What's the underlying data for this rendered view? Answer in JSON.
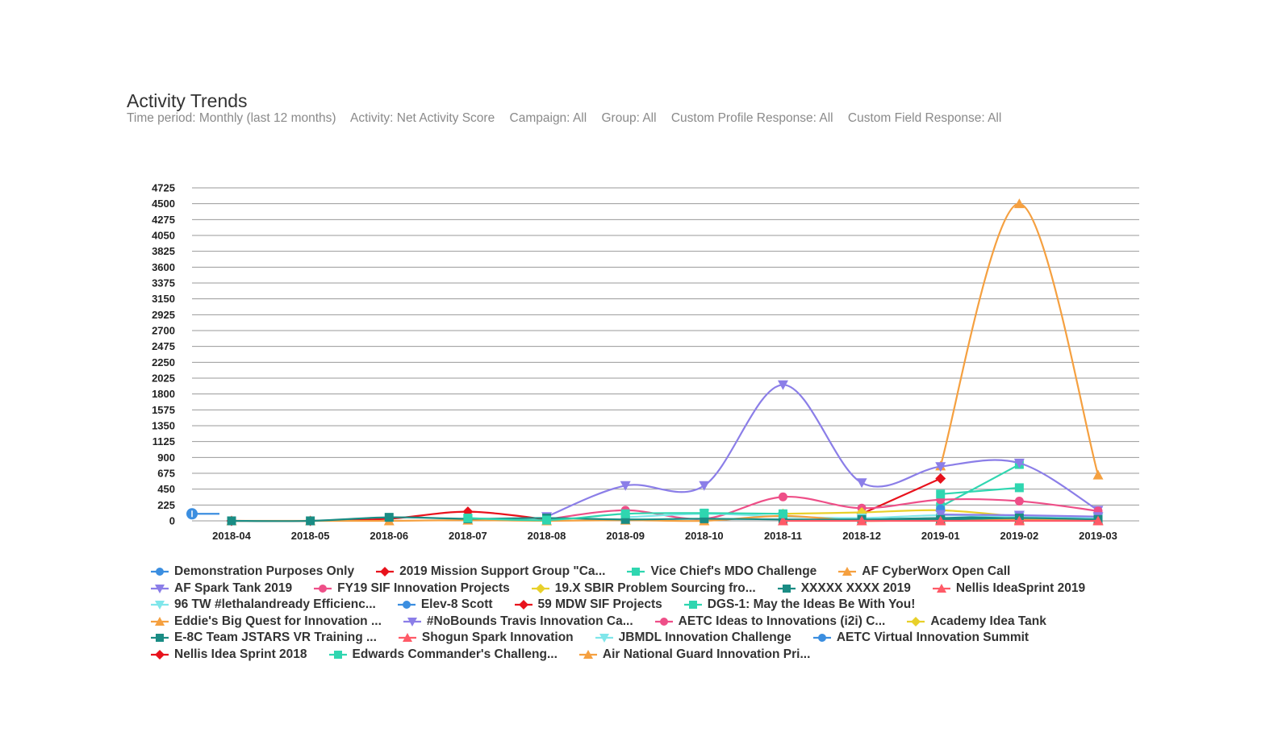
{
  "header": {
    "title": "Activity Trends",
    "filters": [
      "Time period: Monthly (last 12 months)",
      "Activity: Net Activity Score",
      "Campaign: All",
      "Group: All",
      "Custom Profile Response: All",
      "Custom Field Response: All"
    ]
  },
  "chart_data": {
    "type": "line",
    "title": "Activity Trends",
    "xlabel": "",
    "ylabel": "",
    "ylim": [
      0,
      4725
    ],
    "yticks": [
      0,
      225,
      450,
      675,
      900,
      1125,
      1350,
      1575,
      1800,
      2025,
      2250,
      2475,
      2700,
      2925,
      3150,
      3375,
      3600,
      3825,
      4050,
      4275,
      4500,
      4725
    ],
    "categories": [
      "2018-04",
      "2018-05",
      "2018-06",
      "2018-07",
      "2018-08",
      "2018-09",
      "2018-10",
      "2018-11",
      "2018-12",
      "2019-01",
      "2019-02",
      "2019-03"
    ],
    "grid": true,
    "legend_position": "bottom",
    "series": [
      {
        "name": "Demonstration Purposes Only",
        "color": "#3b8ee0",
        "marker": "circle",
        "values": [
          null,
          null,
          null,
          null,
          null,
          null,
          null,
          null,
          null,
          null,
          null,
          null
        ],
        "start_point": {
          "x": "before 2018-04",
          "y": 100
        }
      },
      {
        "name": "2019 Mission Support Group \"Ca...",
        "color": "#e8121c",
        "marker": "diamond",
        "values": [
          null,
          null,
          null,
          null,
          null,
          null,
          null,
          null,
          100,
          600,
          null,
          null
        ]
      },
      {
        "name": "Vice Chief's MDO Challenge",
        "color": "#2fd6b0",
        "marker": "square",
        "values": [
          null,
          null,
          null,
          null,
          null,
          null,
          null,
          null,
          null,
          200,
          800,
          null
        ]
      },
      {
        "name": "AF CyberWorx Open Call",
        "color": "#f5a040",
        "marker": "triangle",
        "values": [
          null,
          null,
          null,
          null,
          null,
          null,
          null,
          null,
          null,
          780,
          4500,
          650
        ]
      },
      {
        "name": "AF Spark Tank 2019",
        "color": "#8b7ee8",
        "marker": "triangle-down",
        "values": [
          null,
          null,
          null,
          null,
          60,
          500,
          500,
          1930,
          540,
          770,
          820,
          150
        ]
      },
      {
        "name": "FY19 SIF Innovation Projects",
        "color": "#ee4f88",
        "marker": "circle",
        "values": [
          null,
          null,
          null,
          null,
          20,
          150,
          30,
          340,
          180,
          300,
          280,
          140
        ]
      },
      {
        "name": "19.X SBIR Problem Sourcing fro...",
        "color": "#e8d02a",
        "marker": "diamond",
        "values": [
          null,
          null,
          null,
          null,
          null,
          null,
          null,
          100,
          120,
          150,
          60,
          null
        ]
      },
      {
        "name": "XXXXX XXXX 2019",
        "color": "#1a8c84",
        "marker": "square",
        "values": [
          null,
          null,
          null,
          null,
          null,
          null,
          null,
          null,
          20,
          40,
          60,
          20
        ]
      },
      {
        "name": "Nellis IdeaSprint 2019",
        "color": "#ff5a67",
        "marker": "triangle",
        "values": [
          null,
          null,
          null,
          null,
          null,
          null,
          null,
          null,
          null,
          10,
          10,
          10
        ]
      },
      {
        "name": "96 TW #lethalandready Efficienc...",
        "color": "#7fe6ea",
        "marker": "triangle-down",
        "values": [
          null,
          null,
          null,
          null,
          null,
          50,
          100,
          60,
          40,
          80,
          60,
          40
        ]
      },
      {
        "name": "Elev-8 Scott",
        "color": "#3b8ee0",
        "marker": "circle",
        "values": [
          null,
          null,
          null,
          null,
          null,
          null,
          null,
          null,
          null,
          170,
          null,
          null
        ]
      },
      {
        "name": "59 MDW SIF Projects",
        "color": "#e8121c",
        "marker": "diamond",
        "values": [
          0,
          0,
          30,
          130,
          20,
          null,
          null,
          null,
          null,
          null,
          null,
          null
        ]
      },
      {
        "name": "DGS-1: May the Ideas Be With You!",
        "color": "#2fd6b0",
        "marker": "square",
        "values": [
          null,
          null,
          null,
          null,
          null,
          null,
          null,
          null,
          null,
          380,
          470,
          null
        ]
      },
      {
        "name": "Eddie's Big Quest for Innovation ...",
        "color": "#f5a040",
        "marker": "triangle",
        "values": [
          0,
          0,
          0,
          10,
          0,
          10,
          0,
          70,
          0,
          20,
          20,
          0
        ]
      },
      {
        "name": "#NoBounds Travis Innovation Ca...",
        "color": "#8b7ee8",
        "marker": "triangle-down",
        "values": [
          null,
          null,
          null,
          null,
          null,
          null,
          null,
          null,
          null,
          90,
          80,
          60
        ]
      },
      {
        "name": "AETC Ideas to Innovations (i2i) C...",
        "color": "#ee4f88",
        "marker": "circle",
        "values": [
          null,
          null,
          null,
          null,
          null,
          null,
          null,
          null,
          null,
          null,
          null,
          null
        ]
      },
      {
        "name": "Academy Idea Tank",
        "color": "#e8d02a",
        "marker": "diamond",
        "values": [
          null,
          null,
          null,
          null,
          null,
          null,
          null,
          null,
          null,
          null,
          null,
          null
        ]
      },
      {
        "name": "E-8C Team JSTARS VR Training ...",
        "color": "#1a8c84",
        "marker": "square",
        "values": [
          0,
          0,
          50,
          30,
          40,
          20,
          30,
          20,
          20,
          20,
          40,
          20
        ]
      },
      {
        "name": "Shogun Spark Innovation",
        "color": "#ff5a67",
        "marker": "triangle",
        "values": [
          null,
          null,
          null,
          null,
          null,
          null,
          null,
          0,
          0,
          0,
          0,
          0
        ]
      },
      {
        "name": "JBMDL Innovation Challenge",
        "color": "#7fe6ea",
        "marker": "triangle-down",
        "values": [
          null,
          null,
          null,
          null,
          null,
          null,
          null,
          null,
          null,
          null,
          null,
          null
        ]
      },
      {
        "name": "AETC Virtual Innovation Summit",
        "color": "#3b8ee0",
        "marker": "circle",
        "values": [
          null,
          null,
          null,
          null,
          null,
          null,
          null,
          null,
          null,
          null,
          null,
          null
        ]
      },
      {
        "name": "Nellis Idea Sprint 2018",
        "color": "#e8121c",
        "marker": "diamond",
        "values": [
          null,
          null,
          null,
          null,
          null,
          null,
          null,
          null,
          null,
          null,
          null,
          null
        ]
      },
      {
        "name": "Edwards Commander's Challeng...",
        "color": "#2fd6b0",
        "marker": "square",
        "values": [
          null,
          null,
          null,
          40,
          10,
          100,
          110,
          100,
          null,
          null,
          null,
          null
        ]
      },
      {
        "name": "Air National Guard Innovation Pri...",
        "color": "#f5a040",
        "marker": "triangle",
        "values": [
          null,
          null,
          null,
          null,
          null,
          null,
          null,
          null,
          null,
          null,
          null,
          null
        ]
      }
    ]
  }
}
